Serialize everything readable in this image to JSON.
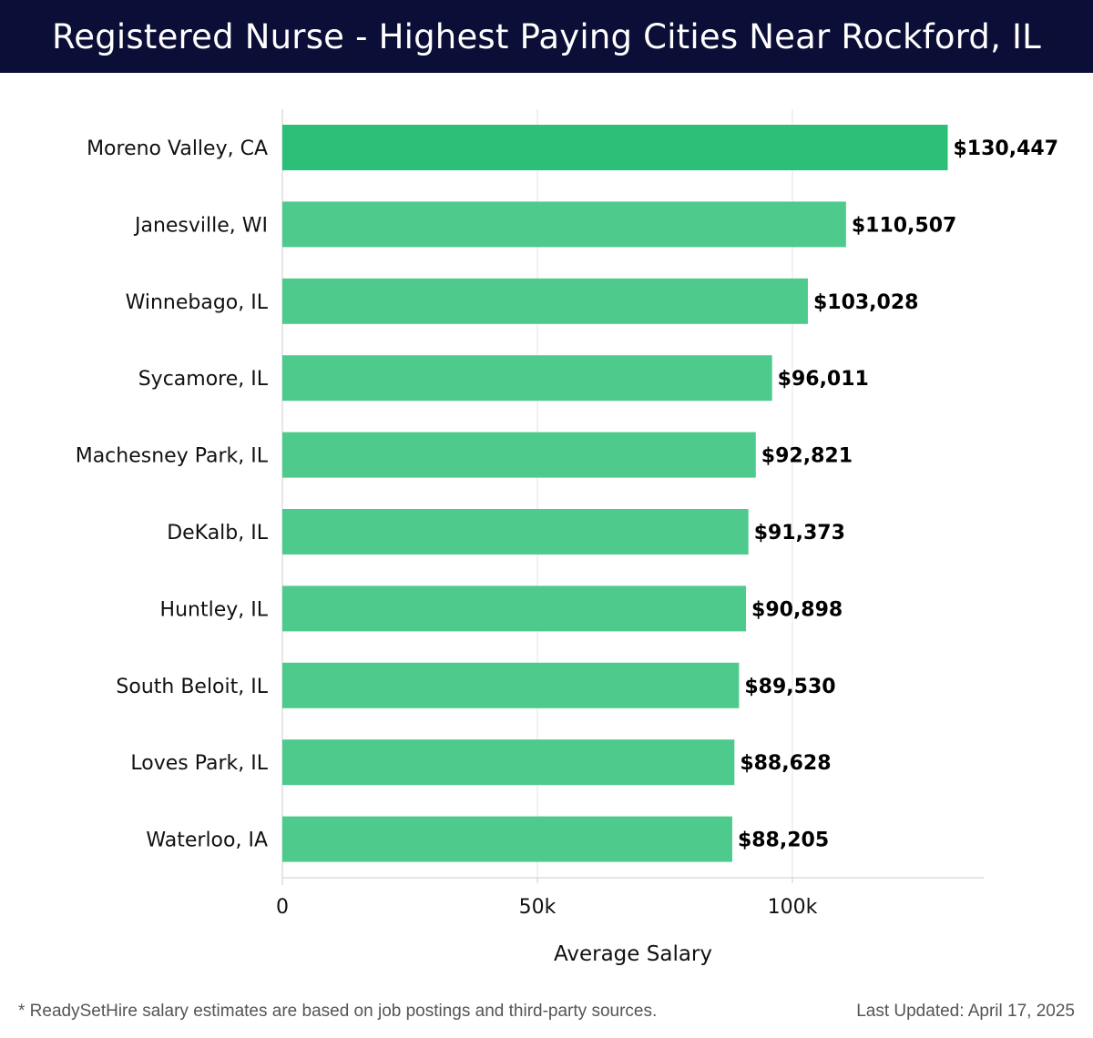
{
  "header": {
    "title": "Registered Nurse - Highest Paying Cities Near Rockford, IL"
  },
  "chart_data": {
    "type": "bar",
    "orientation": "horizontal",
    "title": "Registered Nurse - Highest Paying Cities Near Rockford, IL",
    "xlabel": "Average Salary",
    "ylabel": "",
    "categories": [
      "Moreno Valley, CA",
      "Janesville, WI",
      "Winnebago, IL",
      "Sycamore, IL",
      "Machesney Park, IL",
      "DeKalb, IL",
      "Huntley, IL",
      "South Beloit, IL",
      "Loves Park, IL",
      "Waterloo, IA"
    ],
    "values": [
      130447,
      110507,
      103028,
      96011,
      92821,
      91373,
      90898,
      89530,
      88628,
      88205
    ],
    "value_labels": [
      "$130,447",
      "$110,507",
      "$103,028",
      "$96,011",
      "$92,821",
      "$91,373",
      "$90,898",
      "$89,530",
      "$88,628",
      "$88,205"
    ],
    "xticks": [
      0,
      50000,
      100000
    ],
    "xtick_labels": [
      "0",
      "50k",
      "100k"
    ],
    "xlim": [
      0,
      137500
    ],
    "grid": true,
    "colors": {
      "top_bar": "#2bbf77",
      "bars": "#4fca8d",
      "grid": "#e3e3e3",
      "axis": "#cccccc"
    }
  },
  "footer": {
    "note": "* ReadySetHire salary estimates are based on job postings and third-party sources.",
    "last_updated": "Last Updated: April 17, 2025"
  }
}
